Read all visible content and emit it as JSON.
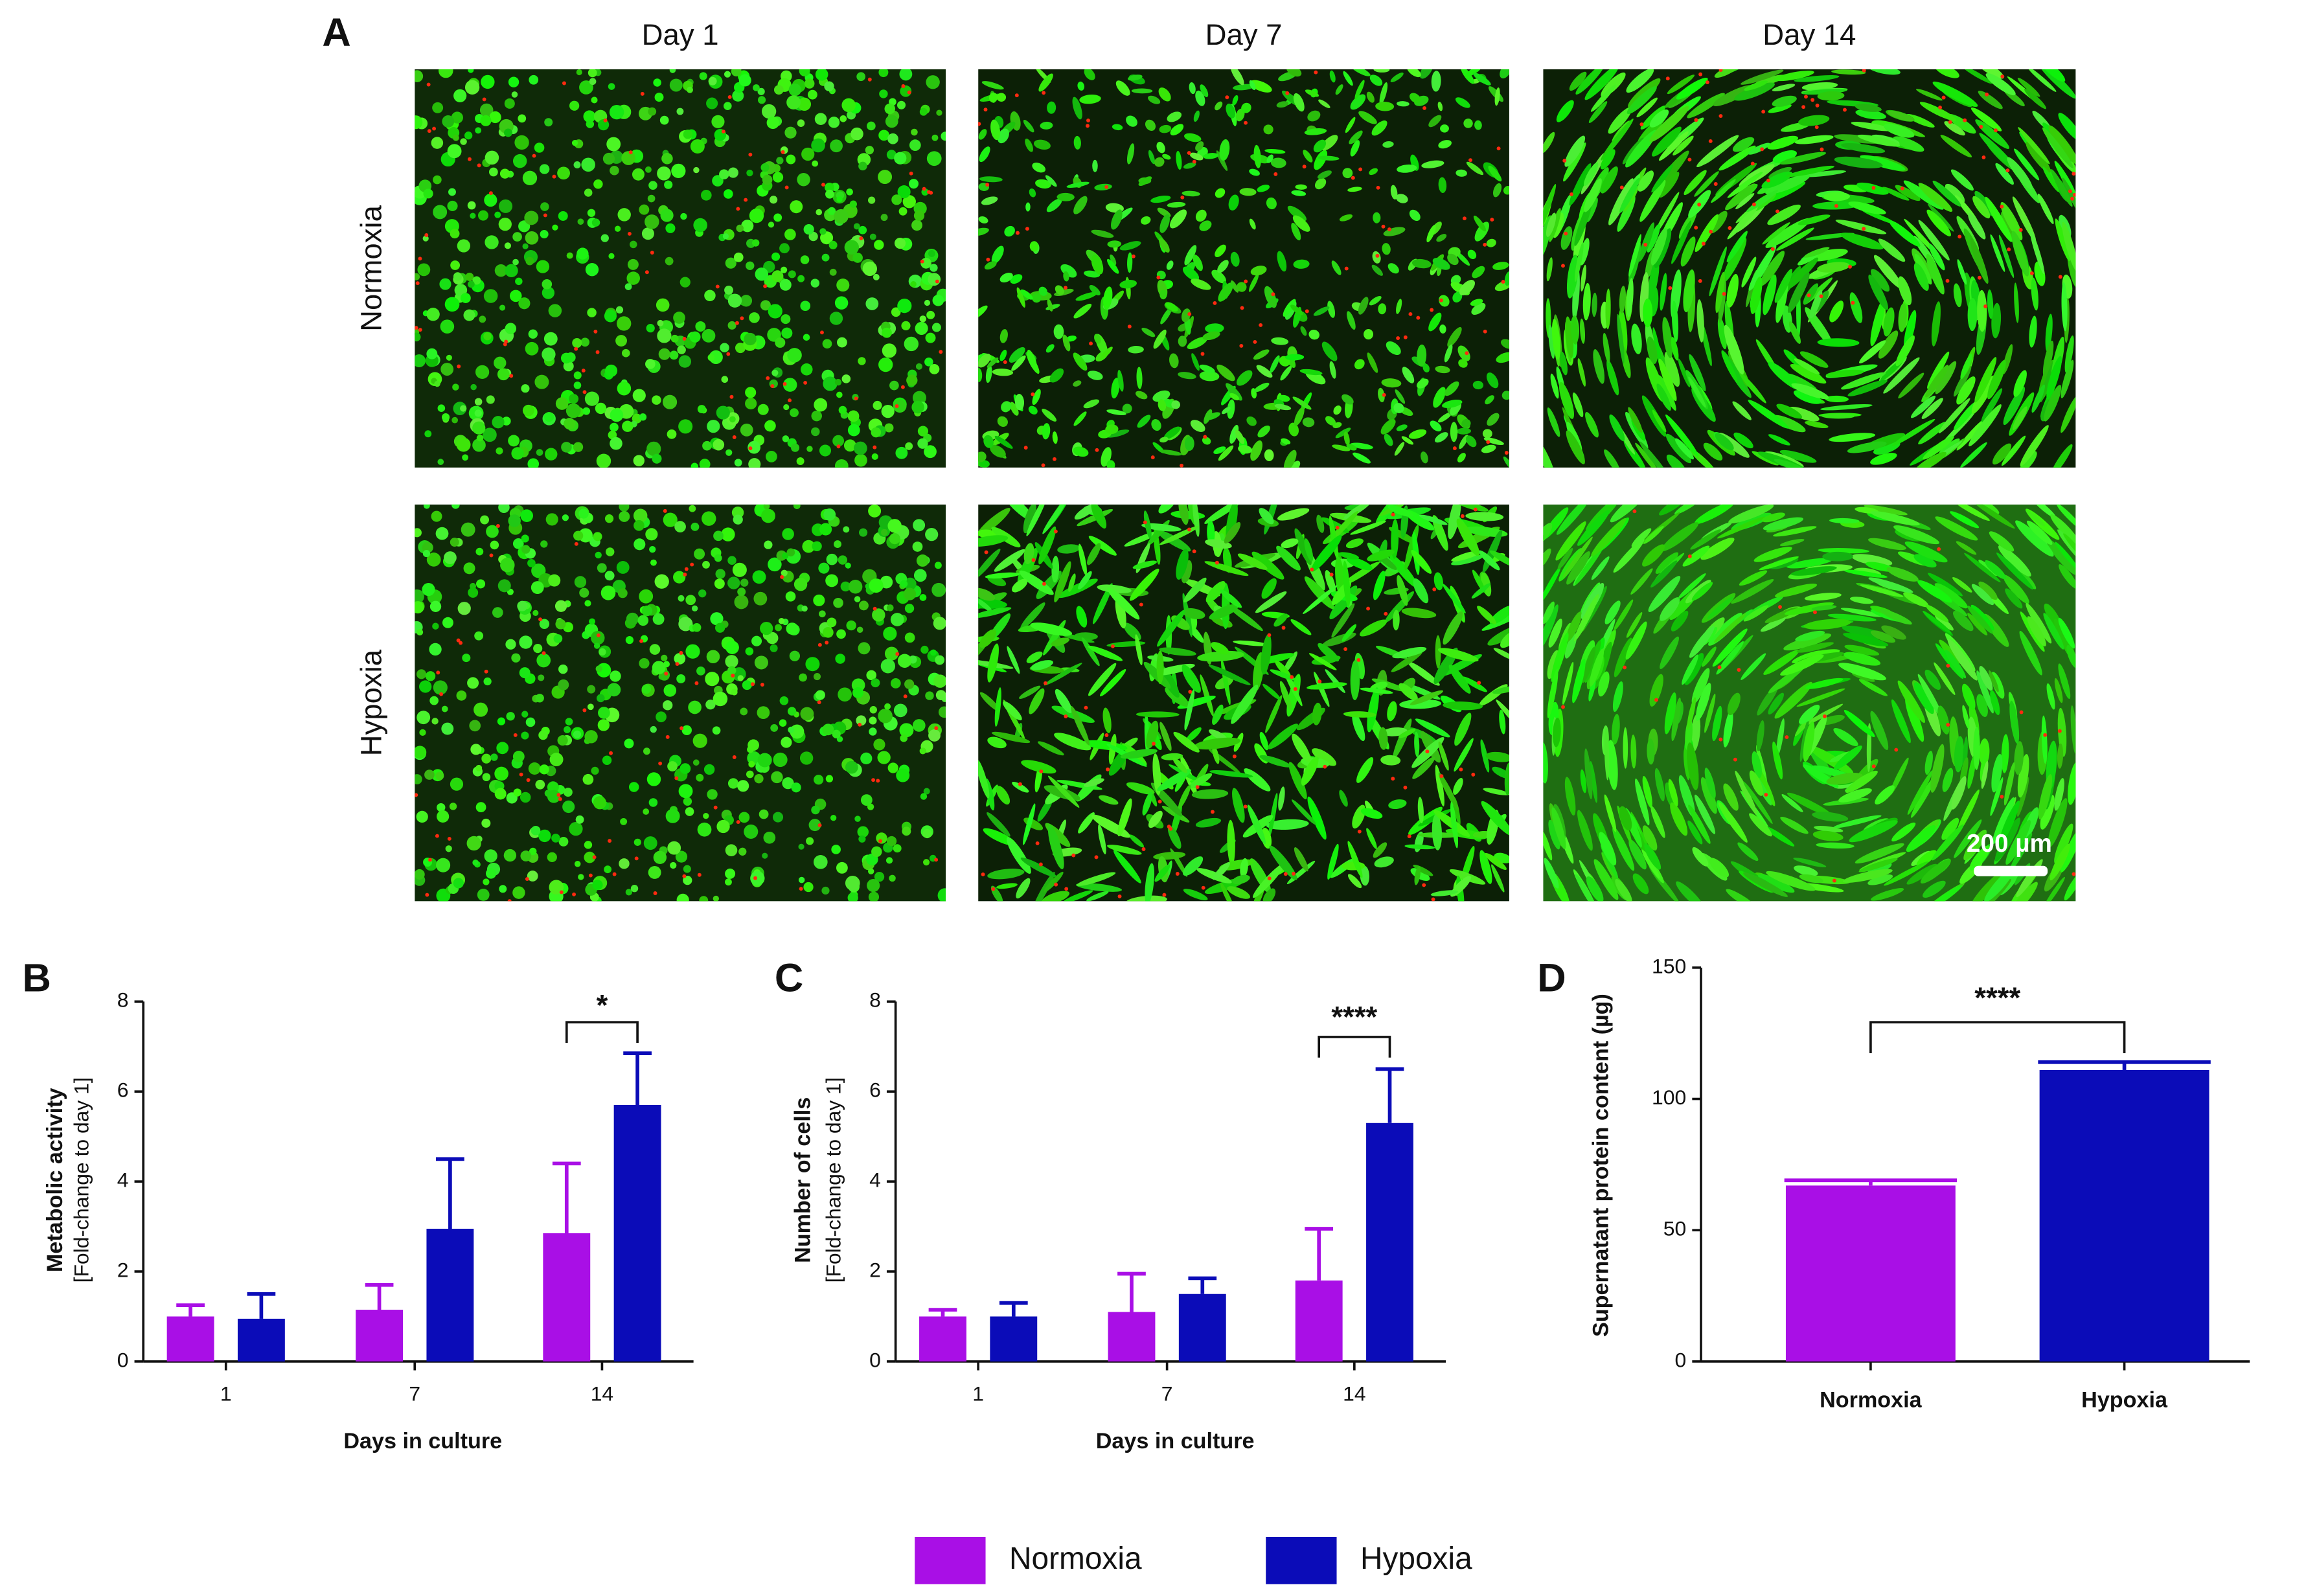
{
  "panel_a": {
    "label": "A",
    "columns": [
      "Day 1",
      "Day 7",
      "Day 14"
    ],
    "rows": [
      "Normoxia",
      "Hypoxia"
    ],
    "scale_bar": "200 µm"
  },
  "chart_data": [
    {
      "type": "bar",
      "label": "B",
      "xlabel": "Days in culture",
      "ylabel": [
        "Metabolic activity",
        "[Fold-change to day 1]"
      ],
      "categories": [
        "1",
        "7",
        "14"
      ],
      "series": [
        {
          "name": "Normoxia",
          "color": "#a90fe6",
          "values": [
            1.0,
            1.15,
            2.85
          ],
          "errors": [
            0.25,
            0.55,
            1.55
          ]
        },
        {
          "name": "Hypoxia",
          "color": "#0b0cb8",
          "values": [
            0.95,
            2.95,
            5.7
          ],
          "errors": [
            0.55,
            1.55,
            1.15
          ]
        }
      ],
      "ylim": [
        0,
        8
      ],
      "yticks": [
        0,
        2,
        4,
        6,
        8
      ],
      "annotation": "*"
    },
    {
      "type": "bar",
      "label": "C",
      "xlabel": "Days in culture",
      "ylabel": [
        "Number of cells",
        "[Fold-change to day 1]"
      ],
      "categories": [
        "1",
        "7",
        "14"
      ],
      "series": [
        {
          "name": "Normoxia",
          "color": "#a90fe6",
          "values": [
            1.0,
            1.1,
            1.8
          ],
          "errors": [
            0.15,
            0.85,
            1.15
          ]
        },
        {
          "name": "Hypoxia",
          "color": "#0b0cb8",
          "values": [
            1.0,
            1.5,
            5.3
          ],
          "errors": [
            0.3,
            0.35,
            1.2
          ]
        }
      ],
      "ylim": [
        0,
        8
      ],
      "yticks": [
        0,
        2,
        4,
        6,
        8
      ],
      "annotation": "****"
    },
    {
      "type": "bar",
      "label": "D",
      "ylabel": [
        "Supernatant protein content (µg)"
      ],
      "categories": [
        "Normoxia",
        "Hypoxia"
      ],
      "values": [
        67,
        111
      ],
      "errors": [
        2,
        3
      ],
      "colors": [
        "#a90fe6",
        "#0b0cb8"
      ],
      "ylim": [
        0,
        150
      ],
      "yticks": [
        0,
        50,
        100,
        150
      ],
      "annotation": "****"
    }
  ]
}
